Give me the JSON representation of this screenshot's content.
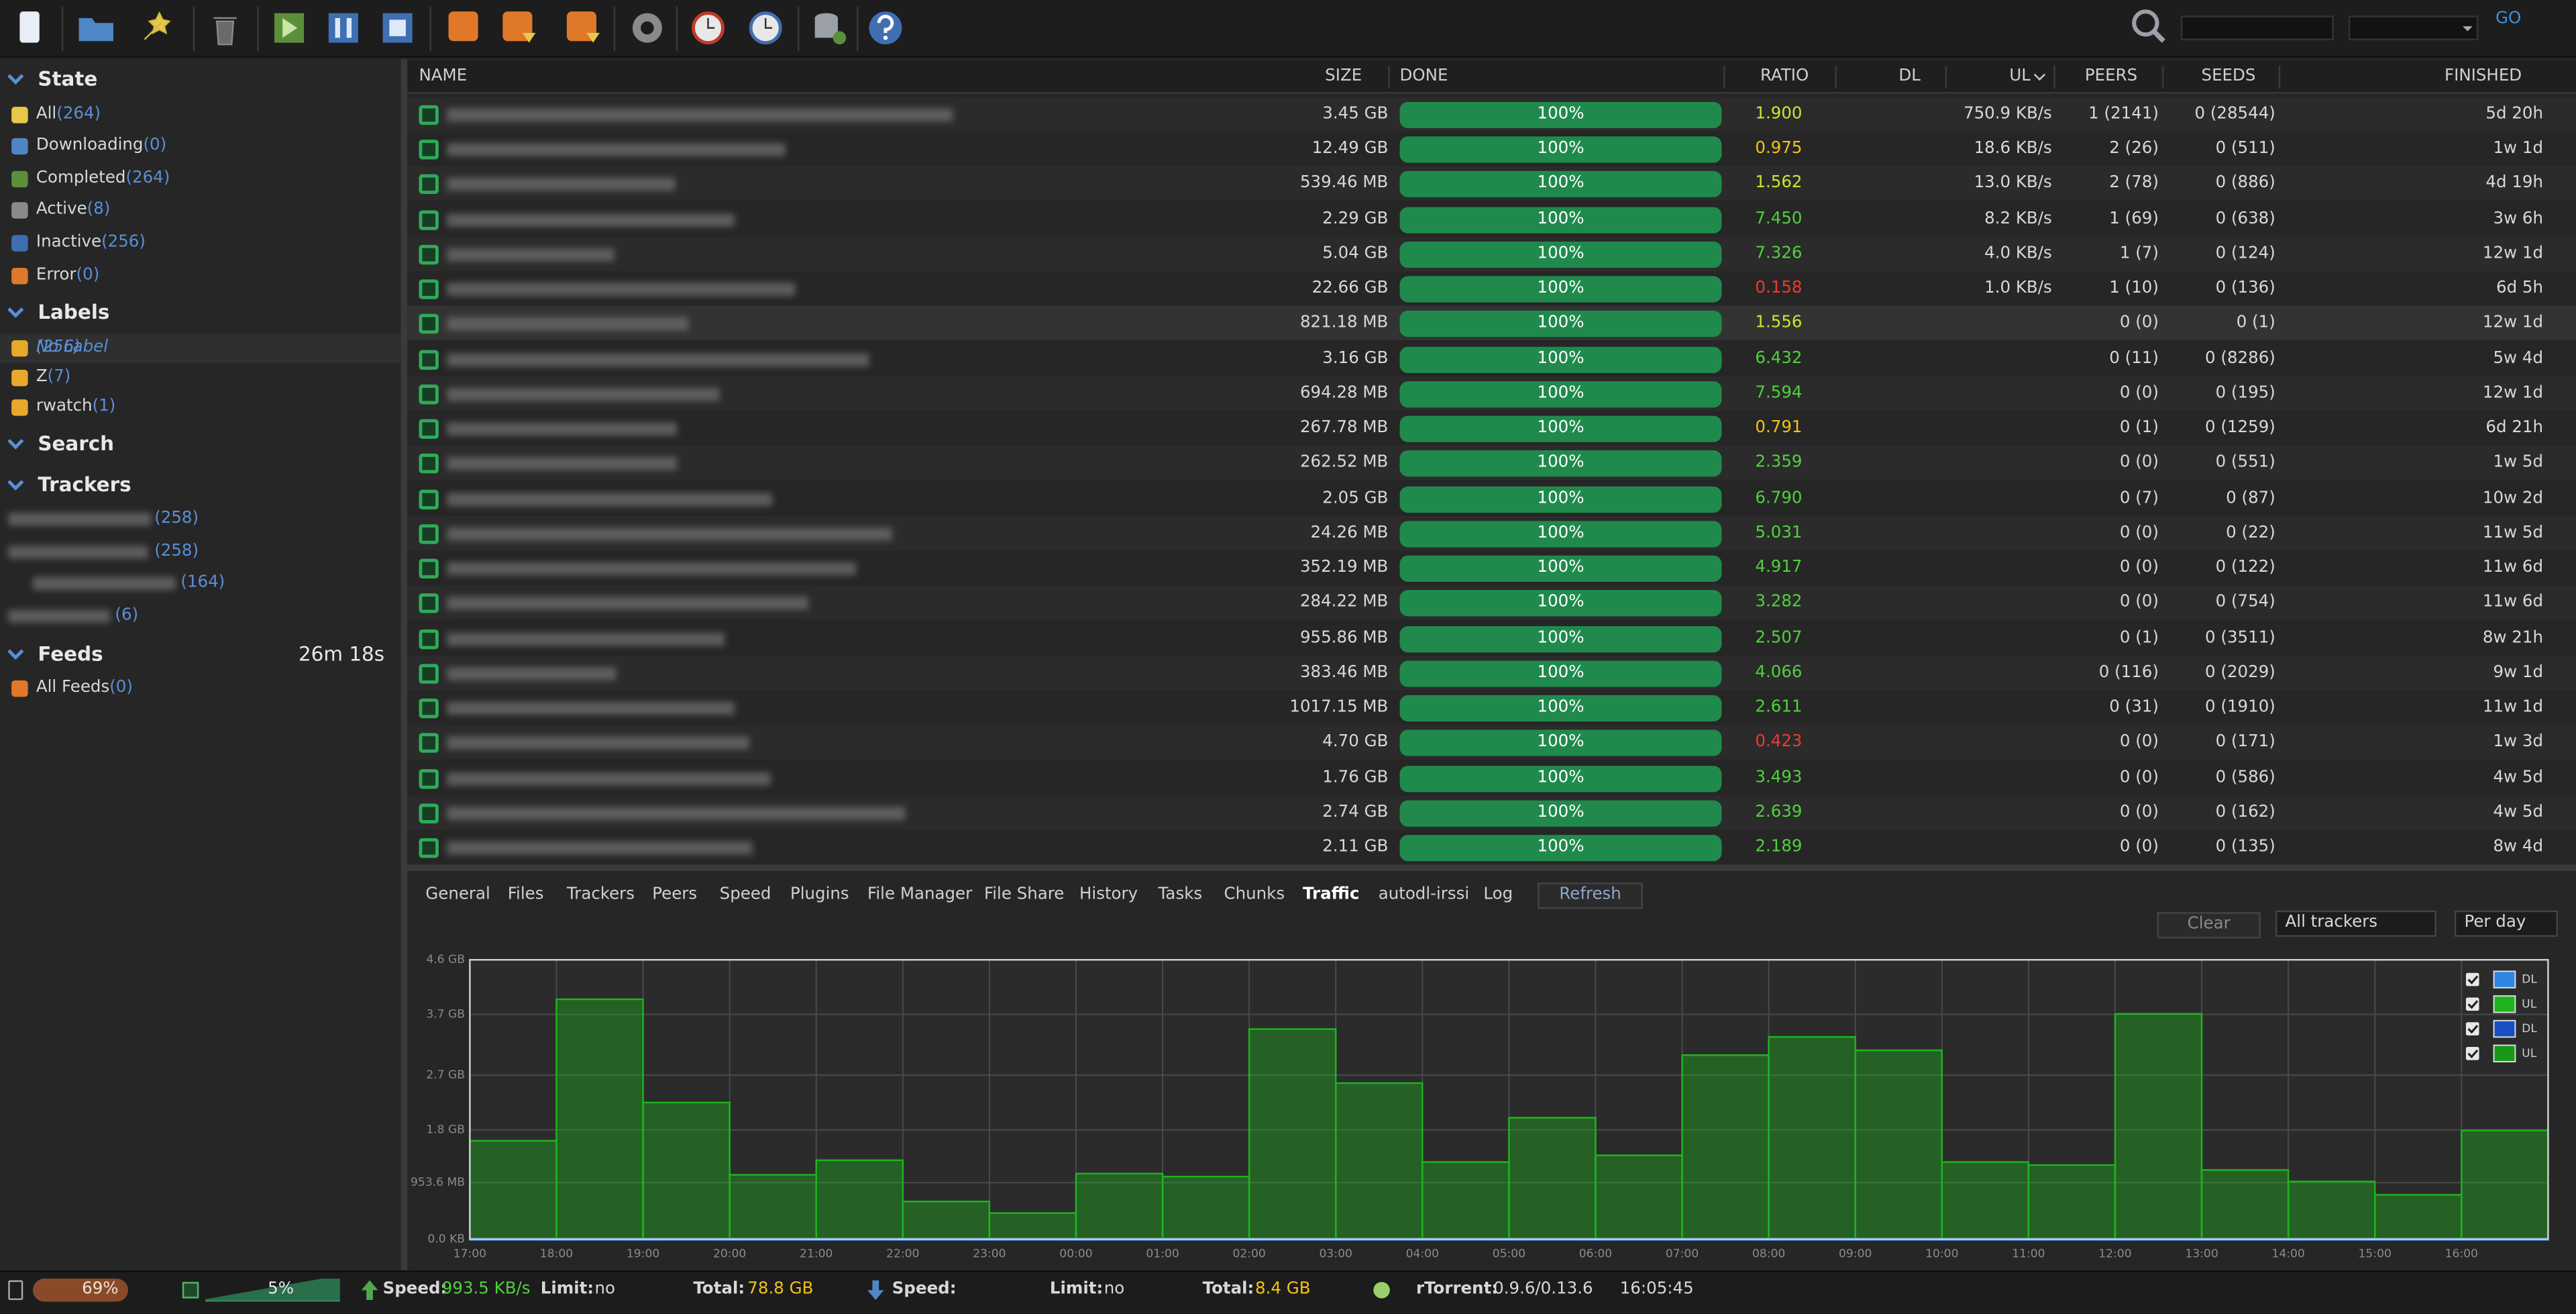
{
  "toolbar": {
    "go": "GO"
  },
  "sidebar": {
    "state": {
      "title": "State",
      "items": [
        {
          "label": "All",
          "count": "(264)"
        },
        {
          "label": "Downloading",
          "count": "(0)"
        },
        {
          "label": "Completed",
          "count": "(264)"
        },
        {
          "label": "Active",
          "count": "(8)"
        },
        {
          "label": "Inactive",
          "count": "(256)"
        },
        {
          "label": "Error",
          "count": "(0)"
        }
      ]
    },
    "labels": {
      "title": "Labels",
      "items": [
        {
          "label": "No Label",
          "count": "(256)"
        },
        {
          "label": "Z",
          "count": "(7)"
        },
        {
          "label": "rwatch",
          "count": "(1)"
        }
      ]
    },
    "search": {
      "title": "Search"
    },
    "trackers": {
      "title": "Trackers",
      "items": [
        {
          "count": "(258)"
        },
        {
          "count": "(258)"
        },
        {
          "count": "(164)"
        },
        {
          "count": "(6)"
        }
      ]
    },
    "feeds": {
      "title": "Feeds",
      "timer": "26m 18s",
      "items": [
        {
          "label": "All Feeds",
          "count": "(0)"
        }
      ]
    }
  },
  "table": {
    "columns": [
      "NAME",
      "SIZE",
      "DONE",
      "RATIO",
      "DL",
      "UL",
      "PEERS",
      "SEEDS",
      "FINISHED"
    ],
    "rows": [
      {
        "size": "3.45 GB",
        "done": "100%",
        "ratio": "1.900",
        "ul": "750.9 KB/s",
        "peers": "1 (2141)",
        "seeds": "0 (28544)",
        "finished": "5d 20h"
      },
      {
        "size": "12.49 GB",
        "done": "100%",
        "ratio": "0.975",
        "ul": "18.6 KB/s",
        "peers": "2 (26)",
        "seeds": "0 (511)",
        "finished": "1w 1d"
      },
      {
        "size": "539.46 MB",
        "done": "100%",
        "ratio": "1.562",
        "ul": "13.0 KB/s",
        "peers": "2 (78)",
        "seeds": "0 (886)",
        "finished": "4d 19h"
      },
      {
        "size": "2.29 GB",
        "done": "100%",
        "ratio": "7.450",
        "ul": "8.2 KB/s",
        "peers": "1 (69)",
        "seeds": "0 (638)",
        "finished": "3w 6h"
      },
      {
        "size": "5.04 GB",
        "done": "100%",
        "ratio": "7.326",
        "ul": "4.0 KB/s",
        "peers": "1 (7)",
        "seeds": "0 (124)",
        "finished": "12w 1d"
      },
      {
        "size": "22.66 GB",
        "done": "100%",
        "ratio": "0.158",
        "ul": "1.0 KB/s",
        "peers": "1 (10)",
        "seeds": "0 (136)",
        "finished": "6d 5h"
      },
      {
        "size": "821.18 MB",
        "done": "100%",
        "ratio": "1.556",
        "peers": "0 (0)",
        "seeds": "0 (1)",
        "finished": "12w 1d"
      },
      {
        "size": "3.16 GB",
        "done": "100%",
        "ratio": "6.432",
        "peers": "0 (11)",
        "seeds": "0 (8286)",
        "finished": "5w 4d"
      },
      {
        "size": "694.28 MB",
        "done": "100%",
        "ratio": "7.594",
        "peers": "0 (0)",
        "seeds": "0 (195)",
        "finished": "12w 1d"
      },
      {
        "size": "267.78 MB",
        "done": "100%",
        "ratio": "0.791",
        "peers": "0 (1)",
        "seeds": "0 (1259)",
        "finished": "6d 21h"
      },
      {
        "size": "262.52 MB",
        "done": "100%",
        "ratio": "2.359",
        "peers": "0 (0)",
        "seeds": "0 (551)",
        "finished": "1w 5d"
      },
      {
        "size": "2.05 GB",
        "done": "100%",
        "ratio": "6.790",
        "peers": "0 (7)",
        "seeds": "0 (87)",
        "finished": "10w 2d"
      },
      {
        "size": "24.26 MB",
        "done": "100%",
        "ratio": "5.031",
        "peers": "0 (0)",
        "seeds": "0 (22)",
        "finished": "11w 5d"
      },
      {
        "size": "352.19 MB",
        "done": "100%",
        "ratio": "4.917",
        "peers": "0 (0)",
        "seeds": "0 (122)",
        "finished": "11w 6d"
      },
      {
        "size": "284.22 MB",
        "done": "100%",
        "ratio": "3.282",
        "peers": "0 (0)",
        "seeds": "0 (754)",
        "finished": "11w 6d"
      },
      {
        "size": "955.86 MB",
        "done": "100%",
        "ratio": "2.507",
        "peers": "0 (1)",
        "seeds": "0 (3511)",
        "finished": "8w 21h"
      },
      {
        "size": "383.46 MB",
        "done": "100%",
        "ratio": "4.066",
        "peers": "0 (116)",
        "seeds": "0 (2029)",
        "finished": "9w 1d"
      },
      {
        "size": "1017.15 MB",
        "done": "100%",
        "ratio": "2.611",
        "peers": "0 (31)",
        "seeds": "0 (1910)",
        "finished": "11w 1d"
      },
      {
        "size": "4.70 GB",
        "done": "100%",
        "ratio": "0.423",
        "peers": "0 (0)",
        "seeds": "0 (171)",
        "finished": "1w 3d"
      },
      {
        "size": "1.76 GB",
        "done": "100%",
        "ratio": "3.493",
        "peers": "0 (0)",
        "seeds": "0 (586)",
        "finished": "4w 5d"
      },
      {
        "size": "2.74 GB",
        "done": "100%",
        "ratio": "2.639",
        "peers": "0 (0)",
        "seeds": "0 (162)",
        "finished": "4w 5d"
      },
      {
        "size": "2.11 GB",
        "done": "100%",
        "ratio": "2.189",
        "peers": "0 (0)",
        "seeds": "0 (135)",
        "finished": "8w 4d"
      }
    ]
  },
  "tabs": {
    "items": [
      "General",
      "Files",
      "Trackers",
      "Peers",
      "Speed",
      "Plugins",
      "File Manager",
      "File Share",
      "History",
      "Tasks",
      "Chunks",
      "Traffic",
      "autodl-irssi",
      "Log"
    ],
    "active": 11,
    "refresh": "Refresh"
  },
  "traffic": {
    "clear": "Clear",
    "tracker_select": "All trackers",
    "period_select": "Per day"
  },
  "chart_data": {
    "type": "bar",
    "categories": [
      "17:00",
      "18:00",
      "19:00",
      "20:00",
      "21:00",
      "22:00",
      "23:00",
      "00:00",
      "01:00",
      "02:00",
      "03:00",
      "04:00",
      "05:00",
      "06:00",
      "07:00",
      "08:00",
      "09:00",
      "10:00",
      "11:00",
      "12:00",
      "13:00",
      "14:00",
      "15:00",
      "16:00"
    ],
    "series": [
      {
        "name": "DL",
        "color": "#2f86e0",
        "values": [
          0.01,
          0.01,
          0.01,
          0.01,
          0.01,
          0.01,
          0.01,
          0.01,
          0.01,
          0.01,
          0.01,
          0.01,
          0.01,
          0.01,
          0.01,
          0.01,
          0.01,
          0.01,
          0.01,
          0.01,
          0.01,
          0.01,
          0.01,
          0.01
        ]
      },
      {
        "name": "UL",
        "color": "#1fb41f",
        "values": [
          1.62,
          3.95,
          2.25,
          1.06,
          1.3,
          0.62,
          0.43,
          1.08,
          1.03,
          3.46,
          2.57,
          1.27,
          2.0,
          1.38,
          3.03,
          3.33,
          3.11,
          1.27,
          1.22,
          3.71,
          1.14,
          0.95,
          0.73,
          1.79
        ]
      },
      {
        "name": "DL",
        "color": "#1a4fc4",
        "values": [
          null,
          null,
          null,
          null,
          null,
          null,
          null,
          null,
          null,
          null,
          null,
          null,
          null,
          null,
          null,
          null,
          null,
          null,
          null,
          null,
          null,
          null,
          null,
          null
        ]
      },
      {
        "name": "UL",
        "color": "#189818",
        "values": [
          null,
          null,
          null,
          null,
          null,
          null,
          null,
          null,
          null,
          null,
          null,
          null,
          null,
          null,
          null,
          null,
          null,
          null,
          null,
          null,
          null,
          null,
          null,
          null
        ]
      }
    ],
    "ylim": [
      0,
      4.6
    ],
    "yticks": [
      {
        "value": 0,
        "label": "0.0 KB"
      },
      {
        "value": 0.9313,
        "label": "953.6 MB"
      },
      {
        "value": 1.8,
        "label": "1.8 GB"
      },
      {
        "value": 2.7,
        "label": "2.7 GB"
      },
      {
        "value": 3.7,
        "label": "3.7 GB"
      },
      {
        "value": 4.6,
        "label": "4.6 GB"
      }
    ],
    "grid": true,
    "legend": "top-right"
  },
  "status": {
    "disk": "69%",
    "cpu": "5%",
    "ul": {
      "speed_label": "Speed:",
      "speed": "993.5 KB/s",
      "limit_label": "Limit:",
      "limit": "no",
      "total_label": "Total:",
      "total": "78.8 GB"
    },
    "dl": {
      "speed_label": "Speed:",
      "limit_label": "Limit:",
      "limit": "no",
      "total_label": "Total:",
      "total": "8.4 GB"
    },
    "client_label": "rTorrent:",
    "client": "0.9.6/0.13.6",
    "time": "16:05:45"
  }
}
